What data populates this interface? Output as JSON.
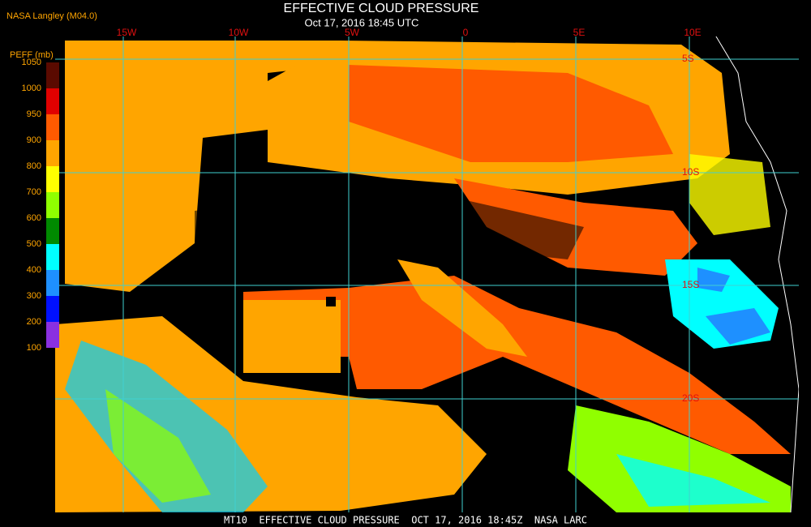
{
  "header": {
    "agency": "NASA Langley (M04.0)",
    "title": "EFFECTIVE CLOUD PRESSURE",
    "timestamp": "Oct 17, 2016 18:45 UTC"
  },
  "colorbar": {
    "label": "PEFF (mb)",
    "ticks": [
      1050,
      1000,
      950,
      900,
      800,
      700,
      600,
      500,
      400,
      300,
      200,
      100
    ],
    "colors": [
      "#5a0a00",
      "#e00000",
      "#ff5a00",
      "#ffa500",
      "#ffff00",
      "#90ff00",
      "#008a00",
      "#00ffff",
      "#1e90ff",
      "#0010ff",
      "#8a30e0"
    ]
  },
  "map": {
    "longitudes": [
      "15W",
      "10W",
      "5W",
      "0",
      "5E",
      "10E"
    ],
    "latitudes": [
      "5S",
      "10S",
      "15S",
      "20S"
    ]
  },
  "footer": "MT10  EFFECTIVE CLOUD PRESSURE  OCT 17, 2016 18:45Z  NASA LARC"
}
